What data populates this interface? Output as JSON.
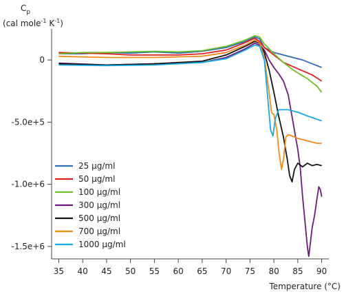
{
  "chart_data": {
    "type": "line",
    "ylabel": {
      "symbol": "C",
      "subscript": "p",
      "unit_open": "(cal mole",
      "unit_sup1": "-1",
      "unit_mid": " K",
      "unit_sup2": "-1",
      "unit_close": ")"
    },
    "xlabel": "Temperature (°C)",
    "xlim": [
      33.5,
      91.5
    ],
    "ylim": [
      -1600000,
      250000
    ],
    "x_ticks": [
      35,
      40,
      45,
      50,
      55,
      60,
      65,
      70,
      75,
      80,
      85,
      90
    ],
    "x_tick_labels": [
      "35",
      "40",
      "45",
      "50",
      "55",
      "60",
      "65",
      "70",
      "75",
      "80",
      "85",
      "90"
    ],
    "y_ticks": [
      0,
      -500000,
      -1000000,
      -1500000
    ],
    "y_tick_labels": [
      "0",
      "-5.0e+5",
      "-1.0e+6",
      "-1.5e+6"
    ],
    "legend_position": "lower-left",
    "series": [
      {
        "name": "25 µg/ml",
        "color": "#2e6db4",
        "points": [
          [
            35,
            50000
          ],
          [
            40,
            50000
          ],
          [
            45,
            60000
          ],
          [
            50,
            55000
          ],
          [
            55,
            65000
          ],
          [
            60,
            55000
          ],
          [
            65,
            70000
          ],
          [
            70,
            100000
          ],
          [
            74,
            150000
          ],
          [
            76,
            185000
          ],
          [
            77,
            170000
          ],
          [
            78,
            100000
          ],
          [
            80,
            60000
          ],
          [
            83,
            30000
          ],
          [
            86,
            0
          ],
          [
            88,
            -30000
          ],
          [
            90,
            -60000
          ]
        ]
      },
      {
        "name": "50 µg/ml",
        "color": "#e02020",
        "points": [
          [
            35,
            60000
          ],
          [
            40,
            55000
          ],
          [
            45,
            50000
          ],
          [
            50,
            40000
          ],
          [
            55,
            40000
          ],
          [
            60,
            40000
          ],
          [
            65,
            50000
          ],
          [
            70,
            80000
          ],
          [
            74,
            140000
          ],
          [
            76,
            175000
          ],
          [
            77,
            150000
          ],
          [
            78,
            100000
          ],
          [
            80,
            40000
          ],
          [
            82,
            -20000
          ],
          [
            85,
            -70000
          ],
          [
            88,
            -120000
          ],
          [
            90,
            -170000
          ]
        ]
      },
      {
        "name": "100 µg/ml",
        "color": "#6cbf26",
        "points": [
          [
            35,
            50000
          ],
          [
            40,
            60000
          ],
          [
            45,
            60000
          ],
          [
            50,
            65000
          ],
          [
            55,
            70000
          ],
          [
            60,
            65000
          ],
          [
            65,
            75000
          ],
          [
            70,
            110000
          ],
          [
            74,
            160000
          ],
          [
            76,
            195000
          ],
          [
            77,
            185000
          ],
          [
            78,
            130000
          ],
          [
            80,
            50000
          ],
          [
            82,
            -20000
          ],
          [
            84,
            -80000
          ],
          [
            87,
            -150000
          ],
          [
            89,
            -210000
          ],
          [
            90,
            -260000
          ]
        ]
      },
      {
        "name": "300 µg/ml",
        "color": "#6a1a7a",
        "points": [
          [
            35,
            -25000
          ],
          [
            45,
            -40000
          ],
          [
            55,
            -30000
          ],
          [
            65,
            -20000
          ],
          [
            70,
            20000
          ],
          [
            74,
            90000
          ],
          [
            76,
            135000
          ],
          [
            77,
            120000
          ],
          [
            78,
            80000
          ],
          [
            79,
            0
          ],
          [
            80,
            -60000
          ],
          [
            81,
            -110000
          ],
          [
            82,
            -170000
          ],
          [
            83,
            -280000
          ],
          [
            84,
            -500000
          ],
          [
            85,
            -720000
          ],
          [
            85.5,
            -860000
          ],
          [
            86,
            -1100000
          ],
          [
            86.5,
            -1300000
          ],
          [
            87,
            -1500000
          ],
          [
            87.3,
            -1580000
          ],
          [
            87.6,
            -1480000
          ],
          [
            88,
            -1350000
          ],
          [
            88.5,
            -1250000
          ],
          [
            89,
            -1120000
          ],
          [
            89.4,
            -1020000
          ],
          [
            89.7,
            -1040000
          ],
          [
            90,
            -1100000
          ]
        ]
      },
      {
        "name": "500 µg/ml",
        "color": "#111111",
        "points": [
          [
            35,
            -30000
          ],
          [
            45,
            -40000
          ],
          [
            55,
            -30000
          ],
          [
            65,
            -10000
          ],
          [
            70,
            40000
          ],
          [
            74,
            110000
          ],
          [
            76,
            150000
          ],
          [
            77,
            135000
          ],
          [
            78,
            60000
          ],
          [
            79,
            -80000
          ],
          [
            80,
            -260000
          ],
          [
            81,
            -450000
          ],
          [
            82,
            -620000
          ],
          [
            82.8,
            -800000
          ],
          [
            83.3,
            -930000
          ],
          [
            83.8,
            -980000
          ],
          [
            84.3,
            -880000
          ],
          [
            85,
            -830000
          ],
          [
            86,
            -860000
          ],
          [
            87,
            -830000
          ],
          [
            88,
            -850000
          ],
          [
            89,
            -840000
          ],
          [
            90,
            -850000
          ]
        ]
      },
      {
        "name": "700 µg/ml",
        "color": "#f08a1c",
        "points": [
          [
            35,
            30000
          ],
          [
            45,
            20000
          ],
          [
            55,
            20000
          ],
          [
            65,
            30000
          ],
          [
            70,
            60000
          ],
          [
            74,
            120000
          ],
          [
            76,
            160000
          ],
          [
            77,
            140000
          ],
          [
            78,
            20000
          ],
          [
            79,
            -260000
          ],
          [
            79.5,
            -420000
          ],
          [
            80,
            -440000
          ],
          [
            80.6,
            -560000
          ],
          [
            81.1,
            -750000
          ],
          [
            81.6,
            -880000
          ],
          [
            82,
            -800000
          ],
          [
            82.5,
            -620000
          ],
          [
            83,
            -600000
          ],
          [
            85,
            -630000
          ],
          [
            87,
            -650000
          ],
          [
            89,
            -670000
          ],
          [
            90,
            -670000
          ]
        ]
      },
      {
        "name": "1000 µg/ml",
        "color": "#1aa8e0",
        "points": [
          [
            35,
            -40000
          ],
          [
            45,
            -45000
          ],
          [
            55,
            -40000
          ],
          [
            65,
            -20000
          ],
          [
            70,
            10000
          ],
          [
            74,
            80000
          ],
          [
            76,
            120000
          ],
          [
            77,
            110000
          ],
          [
            78,
            0
          ],
          [
            78.7,
            -300000
          ],
          [
            79.3,
            -560000
          ],
          [
            79.8,
            -610000
          ],
          [
            80.3,
            -470000
          ],
          [
            81,
            -400000
          ],
          [
            83,
            -400000
          ],
          [
            85,
            -420000
          ],
          [
            87,
            -450000
          ],
          [
            90,
            -490000
          ]
        ]
      }
    ]
  }
}
